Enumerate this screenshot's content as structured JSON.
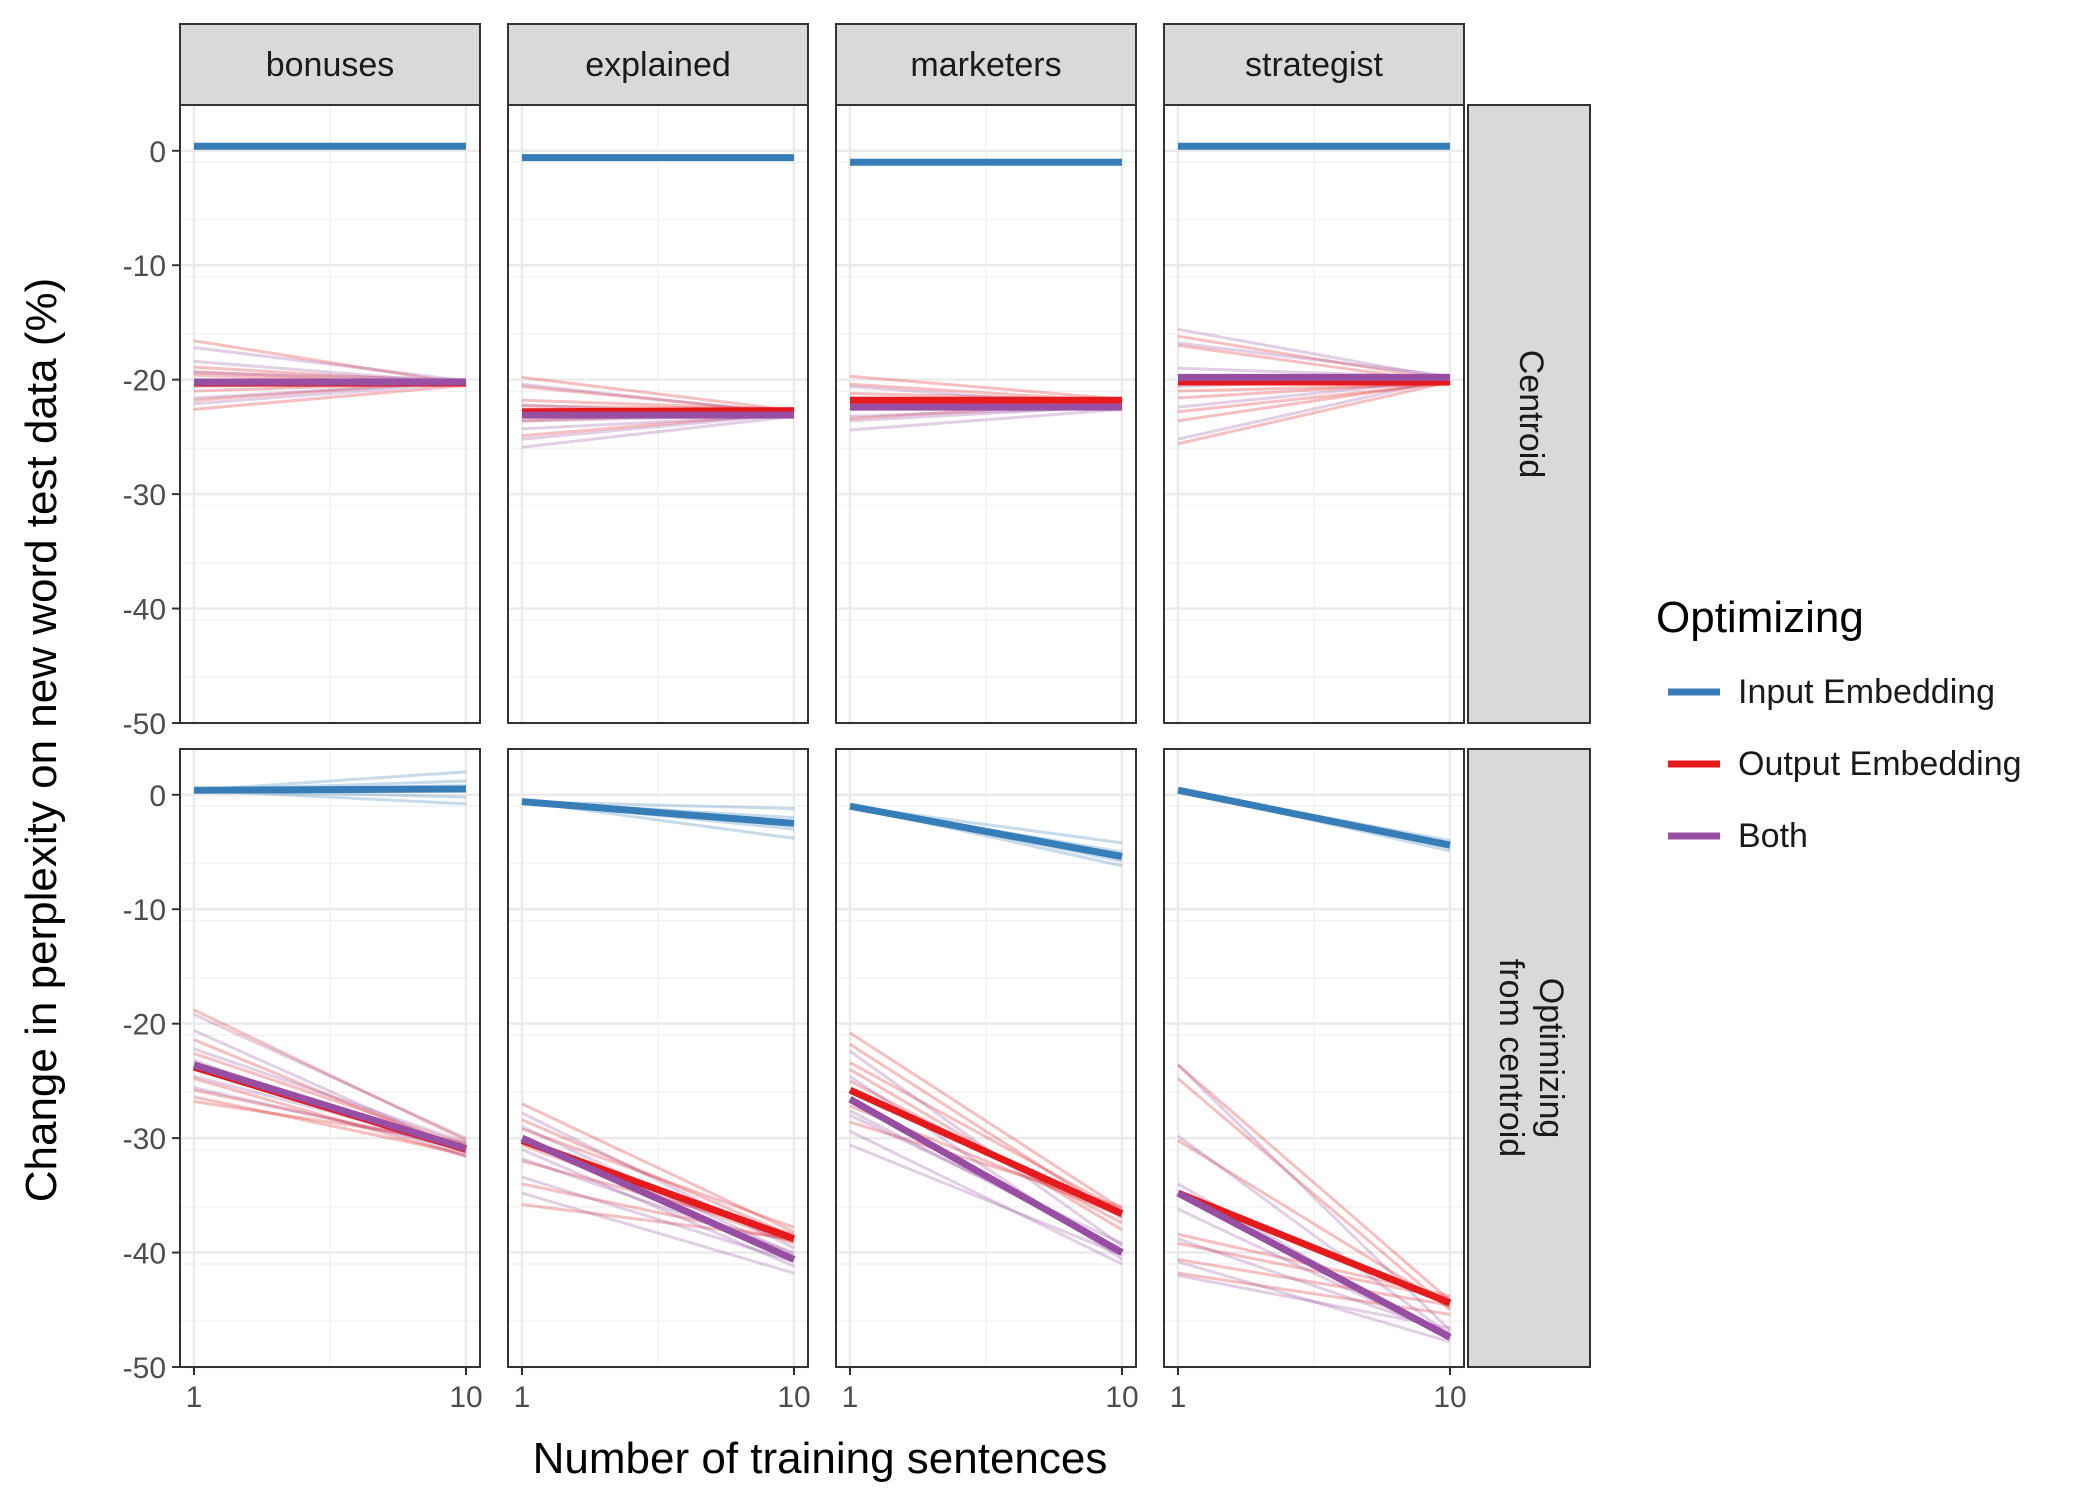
{
  "chart_data": {
    "type": "line",
    "layout": "facet_grid",
    "xlabel": "Number of training sentences",
    "ylabel": "Change in perplexity on new word test data (%)",
    "x_ticks": [
      "1",
      "10"
    ],
    "x_values": [
      1,
      10
    ],
    "ylim": [
      -50,
      4
    ],
    "y_ticks": [
      0,
      -10,
      -20,
      -30,
      -40,
      -50
    ],
    "y_tick_labels": [
      "0",
      "-10",
      "-20",
      "-30",
      "-40",
      "-50"
    ],
    "grid": true,
    "columns": [
      "bonuses",
      "explained",
      "marketers",
      "strategist"
    ],
    "rows": [
      {
        "key": "centroid",
        "label_lines": [
          "Centroid"
        ]
      },
      {
        "key": "optimizing",
        "label_lines": [
          "Optimizing",
          "from centroid"
        ]
      }
    ],
    "legend": {
      "title": "Optimizing",
      "placement": "right",
      "entries": [
        {
          "key": "input",
          "label": "Input Embedding",
          "color": "#377EB8"
        },
        {
          "key": "output",
          "label": "Output Embedding",
          "color": "#E41A1C"
        },
        {
          "key": "both",
          "label": "Both",
          "color": "#984EA3"
        }
      ]
    },
    "panels": [
      {
        "row": "centroid",
        "column": "bonuses",
        "series": [
          {
            "name": "Input Embedding",
            "color": "#377EB8",
            "mean": [
              0.4,
              0.4
            ],
            "runs": [
              [
                0.4,
                0.4
              ]
            ]
          },
          {
            "name": "Output Embedding",
            "color": "#E41A1C",
            "mean": [
              -20.3,
              -20.3
            ],
            "runs": [
              [
                -16.6,
                -20.4
              ],
              [
                -18.9,
                -20.3
              ],
              [
                -19.6,
                -20.4
              ],
              [
                -21.0,
                -20.2
              ],
              [
                -22.6,
                -20.5
              ],
              [
                -21.8,
                -20.1
              ],
              [
                -19.3,
                -20.4
              ]
            ]
          },
          {
            "name": "Both",
            "color": "#984EA3",
            "mean": [
              -20.2,
              -20.2
            ],
            "runs": [
              [
                -17.2,
                -20.1
              ],
              [
                -18.4,
                -20.3
              ],
              [
                -19.4,
                -20.0
              ],
              [
                -21.6,
                -20.2
              ],
              [
                -22.1,
                -20.3
              ],
              [
                -20.6,
                -20.1
              ]
            ]
          }
        ]
      },
      {
        "row": "centroid",
        "column": "explained",
        "series": [
          {
            "name": "Input Embedding",
            "color": "#377EB8",
            "mean": [
              -0.6,
              -0.6
            ],
            "runs": [
              [
                -0.6,
                -0.6
              ]
            ]
          },
          {
            "name": "Output Embedding",
            "color": "#E41A1C",
            "mean": [
              -22.8,
              -22.7
            ],
            "runs": [
              [
                -19.8,
                -22.7
              ],
              [
                -20.6,
                -22.9
              ],
              [
                -21.8,
                -22.6
              ],
              [
                -23.6,
                -22.8
              ],
              [
                -24.9,
                -22.9
              ],
              [
                -22.3,
                -22.6
              ]
            ]
          },
          {
            "name": "Both",
            "color": "#984EA3",
            "mean": [
              -23.1,
              -23.1
            ],
            "runs": [
              [
                -20.4,
                -23.0
              ],
              [
                -22.2,
                -23.2
              ],
              [
                -24.3,
                -23.1
              ],
              [
                -25.9,
                -23.2
              ],
              [
                -25.2,
                -23.0
              ],
              [
                -23.6,
                -23.1
              ]
            ]
          }
        ]
      },
      {
        "row": "centroid",
        "column": "marketers",
        "series": [
          {
            "name": "Input Embedding",
            "color": "#377EB8",
            "mean": [
              -1.0,
              -1.0
            ],
            "runs": [
              [
                -1.0,
                -1.0
              ]
            ]
          },
          {
            "name": "Output Embedding",
            "color": "#E41A1C",
            "mean": [
              -21.8,
              -21.8
            ],
            "runs": [
              [
                -19.7,
                -21.7
              ],
              [
                -20.4,
                -21.9
              ],
              [
                -21.2,
                -21.8
              ],
              [
                -22.6,
                -21.7
              ],
              [
                -23.4,
                -21.9
              ],
              [
                -21.6,
                -21.8
              ]
            ]
          },
          {
            "name": "Both",
            "color": "#984EA3",
            "mean": [
              -22.4,
              -22.4
            ],
            "runs": [
              [
                -20.6,
                -22.3
              ],
              [
                -21.8,
                -22.5
              ],
              [
                -23.2,
                -22.4
              ],
              [
                -24.4,
                -22.6
              ],
              [
                -23.6,
                -22.3
              ],
              [
                -22.0,
                -22.5
              ]
            ]
          }
        ]
      },
      {
        "row": "centroid",
        "column": "strategist",
        "series": [
          {
            "name": "Input Embedding",
            "color": "#377EB8",
            "mean": [
              0.4,
              0.4
            ],
            "runs": [
              [
                0.4,
                0.4
              ]
            ]
          },
          {
            "name": "Output Embedding",
            "color": "#E41A1C",
            "mean": [
              -20.2,
              -20.2
            ],
            "runs": [
              [
                -16.2,
                -20.1
              ],
              [
                -17.0,
                -20.3
              ],
              [
                -21.6,
                -20.2
              ],
              [
                -22.8,
                -20.3
              ],
              [
                -23.6,
                -20.1
              ],
              [
                -25.6,
                -20.2
              ],
              [
                -21.0,
                -20.4
              ]
            ]
          },
          {
            "name": "Both",
            "color": "#984EA3",
            "mean": [
              -19.8,
              -19.8
            ],
            "runs": [
              [
                -15.6,
                -19.9
              ],
              [
                -16.8,
                -19.7
              ],
              [
                -19.0,
                -19.8
              ],
              [
                -22.4,
                -20.0
              ],
              [
                -25.2,
                -19.9
              ],
              [
                -20.6,
                -19.7
              ]
            ]
          }
        ]
      },
      {
        "row": "optimizing",
        "column": "bonuses",
        "series": [
          {
            "name": "Input Embedding",
            "color": "#377EB8",
            "mean": [
              0.4,
              0.5
            ],
            "runs": [
              [
                0.4,
                2.0
              ],
              [
                0.4,
                1.2
              ],
              [
                0.4,
                -0.2
              ],
              [
                0.4,
                -0.8
              ],
              [
                0.4,
                0.8
              ]
            ]
          },
          {
            "name": "Output Embedding",
            "color": "#E41A1C",
            "mean": [
              -23.8,
              -31.0
            ],
            "runs": [
              [
                -18.8,
                -30.2
              ],
              [
                -21.4,
                -31.2
              ],
              [
                -22.6,
                -30.6
              ],
              [
                -24.8,
                -31.6
              ],
              [
                -25.8,
                -30.8
              ],
              [
                -26.4,
                -31.4
              ],
              [
                -26.8,
                -30.4
              ]
            ]
          },
          {
            "name": "Both",
            "color": "#984EA3",
            "mean": [
              -23.6,
              -30.9
            ],
            "runs": [
              [
                -19.2,
                -30.0
              ],
              [
                -20.6,
                -31.2
              ],
              [
                -22.2,
                -30.4
              ],
              [
                -23.2,
                -31.6
              ],
              [
                -24.6,
                -30.8
              ],
              [
                -25.6,
                -31.0
              ]
            ]
          }
        ]
      },
      {
        "row": "optimizing",
        "column": "explained",
        "series": [
          {
            "name": "Input Embedding",
            "color": "#377EB8",
            "mean": [
              -0.6,
              -2.5
            ],
            "runs": [
              [
                -0.6,
                -1.2
              ],
              [
                -0.6,
                -2.0
              ],
              [
                -0.6,
                -3.0
              ],
              [
                -0.6,
                -3.8
              ],
              [
                -0.6,
                -2.6
              ]
            ]
          },
          {
            "name": "Output Embedding",
            "color": "#E41A1C",
            "mean": [
              -30.2,
              -38.8
            ],
            "runs": [
              [
                -27.0,
                -38.2
              ],
              [
                -28.4,
                -38.6
              ],
              [
                -30.6,
                -39.2
              ],
              [
                -32.0,
                -38.4
              ],
              [
                -34.0,
                -39.0
              ],
              [
                -35.8,
                -38.8
              ],
              [
                -29.2,
                -37.8
              ]
            ]
          },
          {
            "name": "Both",
            "color": "#984EA3",
            "mean": [
              -30.0,
              -40.6
            ],
            "runs": [
              [
                -27.8,
                -39.6
              ],
              [
                -29.0,
                -40.2
              ],
              [
                -31.0,
                -41.2
              ],
              [
                -33.4,
                -40.8
              ],
              [
                -34.8,
                -41.8
              ],
              [
                -31.8,
                -40.0
              ]
            ]
          }
        ]
      },
      {
        "row": "optimizing",
        "column": "marketers",
        "series": [
          {
            "name": "Input Embedding",
            "color": "#377EB8",
            "mean": [
              -1.0,
              -5.4
            ],
            "runs": [
              [
                -1.0,
                -4.2
              ],
              [
                -1.0,
                -5.0
              ],
              [
                -1.0,
                -5.8
              ],
              [
                -1.0,
                -6.2
              ],
              [
                -1.0,
                -5.2
              ]
            ]
          },
          {
            "name": "Output Embedding",
            "color": "#E41A1C",
            "mean": [
              -25.8,
              -36.6
            ],
            "runs": [
              [
                -20.8,
                -36.2
              ],
              [
                -21.8,
                -37.0
              ],
              [
                -23.4,
                -36.4
              ],
              [
                -25.0,
                -37.4
              ],
              [
                -27.2,
                -36.8
              ],
              [
                -28.6,
                -36.0
              ],
              [
                -24.0,
                -38.0
              ]
            ]
          },
          {
            "name": "Both",
            "color": "#984EA3",
            "mean": [
              -26.6,
              -40.0
            ],
            "runs": [
              [
                -22.4,
                -39.4
              ],
              [
                -24.6,
                -40.6
              ],
              [
                -27.6,
                -39.8
              ],
              [
                -29.4,
                -41.0
              ],
              [
                -30.6,
                -40.2
              ],
              [
                -28.0,
                -39.2
              ]
            ]
          }
        ]
      },
      {
        "row": "optimizing",
        "column": "strategist",
        "series": [
          {
            "name": "Input Embedding",
            "color": "#377EB8",
            "mean": [
              0.4,
              -4.4
            ],
            "runs": [
              [
                0.4,
                -4.0
              ],
              [
                0.4,
                -4.6
              ],
              [
                0.4,
                -4.9
              ],
              [
                0.4,
                -4.2
              ]
            ]
          },
          {
            "name": "Output Embedding",
            "color": "#E41A1C",
            "mean": [
              -34.8,
              -44.4
            ],
            "runs": [
              [
                -23.6,
                -44.2
              ],
              [
                -24.8,
                -45.0
              ],
              [
                -30.2,
                -44.8
              ],
              [
                -38.4,
                -43.8
              ],
              [
                -40.6,
                -44.6
              ],
              [
                -41.8,
                -45.4
              ],
              [
                -39.2,
                -44.0
              ]
            ]
          },
          {
            "name": "Both",
            "color": "#984EA3",
            "mean": [
              -34.8,
              -47.4
            ],
            "runs": [
              [
                -23.6,
                -46.8
              ],
              [
                -29.8,
                -47.2
              ],
              [
                -34.0,
                -47.6
              ],
              [
                -38.8,
                -47.0
              ],
              [
                -40.8,
                -47.8
              ],
              [
                -42.0,
                -46.6
              ],
              [
                -36.2,
                -47.4
              ]
            ]
          }
        ]
      }
    ]
  }
}
